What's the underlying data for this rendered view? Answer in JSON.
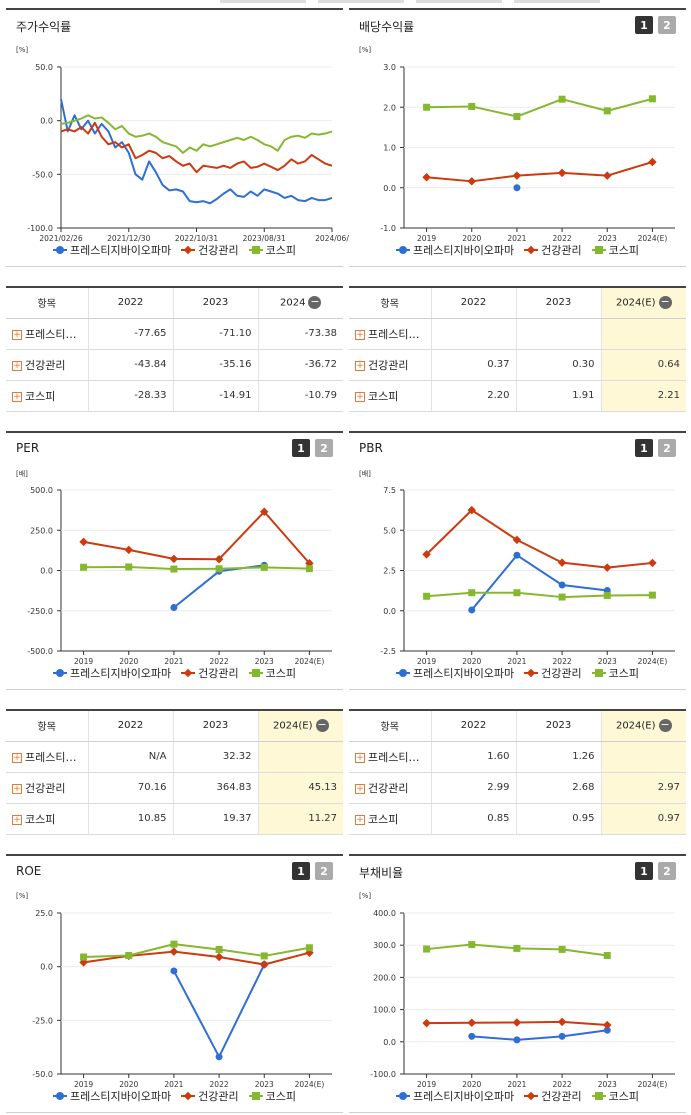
{
  "colors": {
    "company": "#2f6fd4",
    "sector": "#cc3a0e",
    "kospi": "#86b82f"
  },
  "legend": {
    "company": "프레스티지바이오파마",
    "sector": "건강관리",
    "kospi": "코스피"
  },
  "panels": {
    "stock": {
      "title": "주가수익률",
      "unit": "[%]"
    },
    "dividend": {
      "title": "배당수익률",
      "unit": "[%]",
      "btn1": "1",
      "btn2": "2"
    },
    "per": {
      "title": "PER",
      "unit": "[배]",
      "btn1": "1",
      "btn2": "2"
    },
    "pbr": {
      "title": "PBR",
      "unit": "[배]",
      "btn1": "1",
      "btn2": "2"
    },
    "roe": {
      "title": "ROE",
      "unit": "[%]",
      "btn1": "1",
      "btn2": "2"
    },
    "debt": {
      "title": "부채비율",
      "unit": "[%]",
      "btn1": "1",
      "btn2": "2"
    }
  },
  "tables": {
    "stock": {
      "headers": [
        "항목",
        "2022",
        "2023",
        "2024"
      ],
      "rows": [
        [
          "프레스티…",
          "-77.65",
          "-71.10",
          "-73.38"
        ],
        [
          "건강관리",
          "-43.84",
          "-35.16",
          "-36.72"
        ],
        [
          "코스피",
          "-28.33",
          "-14.91",
          "-10.79"
        ]
      ]
    },
    "dividend": {
      "headers": [
        "항목",
        "2022",
        "2023",
        "2024(E)"
      ],
      "rows": [
        [
          "프레스티…",
          "",
          "",
          ""
        ],
        [
          "건강관리",
          "0.37",
          "0.30",
          "0.64"
        ],
        [
          "코스피",
          "2.20",
          "1.91",
          "2.21"
        ]
      ]
    },
    "per": {
      "headers": [
        "항목",
        "2022",
        "2023",
        "2024(E)"
      ],
      "rows": [
        [
          "프레스티…",
          "N/A",
          "32.32",
          ""
        ],
        [
          "건강관리",
          "70.16",
          "364.83",
          "45.13"
        ],
        [
          "코스피",
          "10.85",
          "19.37",
          "11.27"
        ]
      ]
    },
    "pbr": {
      "headers": [
        "항목",
        "2022",
        "2023",
        "2024(E)"
      ],
      "rows": [
        [
          "프레스티…",
          "1.60",
          "1.26",
          ""
        ],
        [
          "건강관리",
          "2.99",
          "2.68",
          "2.97"
        ],
        [
          "코스피",
          "0.85",
          "0.95",
          "0.97"
        ]
      ]
    }
  },
  "chart_data": [
    {
      "id": "stock",
      "type": "line",
      "title": "주가수익률",
      "ylabel": "[%]",
      "ylim": [
        -100,
        50
      ],
      "yticks": [
        50,
        0,
        -50,
        -100
      ],
      "ytick_labels": [
        "50.0",
        "0.0",
        "-50.0",
        "-100.0"
      ],
      "xtick_labels": [
        "2021/02/26",
        "2021/12/30",
        "2022/10/31",
        "2023/08/31",
        "2024/06/"
      ],
      "xlim": [
        0,
        40
      ],
      "xtick_pos": [
        0,
        10,
        20,
        30,
        40
      ],
      "series": [
        {
          "name": "프레스티지바이오파마",
          "key": "company",
          "marker": "none",
          "x": [
            0,
            1,
            2,
            3,
            4,
            5,
            6,
            7,
            8,
            9,
            10,
            11,
            12,
            13,
            14,
            15,
            16,
            17,
            18,
            19,
            20,
            21,
            22,
            23,
            24,
            25,
            26,
            27,
            28,
            29,
            30,
            31,
            32,
            33,
            34,
            35,
            36,
            37,
            38,
            39,
            40
          ],
          "y": [
            20,
            -10,
            5,
            -8,
            0,
            -12,
            -3,
            -10,
            -25,
            -20,
            -30,
            -50,
            -55,
            -38,
            -48,
            -60,
            -65,
            -64,
            -66,
            -75,
            -76,
            -75,
            -77,
            -73,
            -68,
            -64,
            -70,
            -71,
            -66,
            -70,
            -64,
            -66,
            -68,
            -72,
            -70,
            -74,
            -75,
            -72,
            -74,
            -74,
            -72
          ]
        },
        {
          "name": "건강관리",
          "key": "sector",
          "marker": "none",
          "x": [
            0,
            1,
            2,
            3,
            4,
            5,
            6,
            7,
            8,
            9,
            10,
            11,
            12,
            13,
            14,
            15,
            16,
            17,
            18,
            19,
            20,
            21,
            22,
            23,
            24,
            25,
            26,
            27,
            28,
            29,
            30,
            31,
            32,
            33,
            34,
            35,
            36,
            37,
            38,
            39,
            40
          ],
          "y": [
            -10,
            -8,
            -10,
            -6,
            -12,
            -2,
            -15,
            -22,
            -20,
            -25,
            -22,
            -35,
            -32,
            -28,
            -30,
            -35,
            -33,
            -38,
            -42,
            -40,
            -48,
            -42,
            -43,
            -44,
            -42,
            -44,
            -40,
            -38,
            -44,
            -43,
            -40,
            -43,
            -46,
            -42,
            -36,
            -40,
            -38,
            -32,
            -36,
            -40,
            -42
          ]
        },
        {
          "name": "코스피",
          "key": "kospi",
          "marker": "none",
          "x": [
            0,
            1,
            2,
            3,
            4,
            5,
            6,
            7,
            8,
            9,
            10,
            11,
            12,
            13,
            14,
            15,
            16,
            17,
            18,
            19,
            20,
            21,
            22,
            23,
            24,
            25,
            26,
            27,
            28,
            29,
            30,
            31,
            32,
            33,
            34,
            35,
            36,
            37,
            38,
            39,
            40
          ],
          "y": [
            -3,
            -2,
            0,
            2,
            5,
            2,
            3,
            -2,
            -8,
            -5,
            -12,
            -15,
            -14,
            -12,
            -15,
            -20,
            -22,
            -24,
            -30,
            -25,
            -28,
            -22,
            -24,
            -22,
            -20,
            -18,
            -16,
            -18,
            -15,
            -18,
            -22,
            -24,
            -28,
            -18,
            -15,
            -14,
            -16,
            -12,
            -13,
            -12,
            -10
          ]
        }
      ]
    },
    {
      "id": "dividend",
      "type": "line",
      "title": "배당수익률",
      "ylabel": "[%]",
      "ylim": [
        -1,
        3
      ],
      "yticks": [
        3,
        2,
        1,
        0,
        -1
      ],
      "ytick_labels": [
        "3.0",
        "2.0",
        "1.0",
        "0.0",
        "-1.0"
      ],
      "categories": [
        "2019",
        "2020",
        "2021",
        "2022",
        "2023",
        "2024(E)"
      ],
      "series": [
        {
          "name": "프레스티지바이오파마",
          "key": "company",
          "marker": "circle",
          "values": [
            null,
            null,
            0.0,
            null,
            null,
            null
          ]
        },
        {
          "name": "건강관리",
          "key": "sector",
          "marker": "diamond",
          "values": [
            0.26,
            0.16,
            0.3,
            0.37,
            0.3,
            0.64
          ]
        },
        {
          "name": "코스피",
          "key": "kospi",
          "marker": "square",
          "values": [
            2.0,
            2.02,
            1.77,
            2.2,
            1.91,
            2.21
          ]
        }
      ]
    },
    {
      "id": "per",
      "type": "line",
      "title": "PER",
      "ylabel": "[배]",
      "ylim": [
        -500,
        500
      ],
      "yticks": [
        500,
        250,
        0,
        -250,
        -500
      ],
      "ytick_labels": [
        "500.0",
        "250.0",
        "0.0",
        "-250.0",
        "-500.0"
      ],
      "categories": [
        "2019",
        "2020",
        "2021",
        "2022",
        "2023",
        "2024(E)"
      ],
      "series": [
        {
          "name": "프레스티지바이오파마",
          "key": "company",
          "marker": "circle",
          "values": [
            null,
            null,
            -230,
            -5,
            32.32,
            null
          ]
        },
        {
          "name": "건강관리",
          "key": "sector",
          "marker": "diamond",
          "values": [
            178,
            128,
            72,
            70.16,
            364.83,
            45.13
          ]
        },
        {
          "name": "코스피",
          "key": "kospi",
          "marker": "square",
          "values": [
            20,
            22,
            9,
            10.85,
            19.37,
            11.27
          ]
        }
      ]
    },
    {
      "id": "pbr",
      "type": "line",
      "title": "PBR",
      "ylabel": "[배]",
      "ylim": [
        -2.5,
        7.5
      ],
      "yticks": [
        7.5,
        5,
        2.5,
        0,
        -2.5
      ],
      "ytick_labels": [
        "7.5",
        "5.0",
        "2.5",
        "0.0",
        "-2.5"
      ],
      "categories": [
        "2019",
        "2020",
        "2021",
        "2022",
        "2023",
        "2024(E)"
      ],
      "series": [
        {
          "name": "프레스티지바이오파마",
          "key": "company",
          "marker": "circle",
          "values": [
            null,
            0.05,
            3.45,
            1.6,
            1.26,
            null
          ]
        },
        {
          "name": "건강관리",
          "key": "sector",
          "marker": "diamond",
          "values": [
            3.5,
            6.25,
            4.4,
            2.99,
            2.68,
            2.97
          ]
        },
        {
          "name": "코스피",
          "key": "kospi",
          "marker": "square",
          "values": [
            0.9,
            1.12,
            1.12,
            0.85,
            0.95,
            0.97
          ]
        }
      ]
    },
    {
      "id": "roe",
      "type": "line",
      "title": "ROE",
      "ylabel": "[%]",
      "ylim": [
        -50,
        25
      ],
      "yticks": [
        25,
        0,
        -25,
        -50
      ],
      "ytick_labels": [
        "25.0",
        "0.0",
        "-25.0",
        "-50.0"
      ],
      "categories": [
        "2019",
        "2020",
        "2021",
        "2022",
        "2023",
        "2024(E)"
      ],
      "series": [
        {
          "name": "프레스티지바이오파마",
          "key": "company",
          "marker": "circle",
          "values": [
            null,
            null,
            -2,
            -42,
            1,
            null
          ]
        },
        {
          "name": "건강관리",
          "key": "sector",
          "marker": "diamond",
          "values": [
            2,
            5,
            7,
            4.5,
            1,
            6.5
          ]
        },
        {
          "name": "코스피",
          "key": "kospi",
          "marker": "square",
          "values": [
            4.5,
            5.2,
            10.5,
            8,
            5,
            8.8
          ]
        }
      ]
    },
    {
      "id": "debt",
      "type": "line",
      "title": "부채비율",
      "ylabel": "[%]",
      "ylim": [
        -100,
        400
      ],
      "yticks": [
        400,
        300,
        200,
        100,
        0,
        -100
      ],
      "ytick_labels": [
        "400.0",
        "300.0",
        "200.0",
        "100.0",
        "0.0",
        "-100.0"
      ],
      "categories": [
        "2019",
        "2020",
        "2021",
        "2022",
        "2023",
        "2024(E)"
      ],
      "series": [
        {
          "name": "프레스티지바이오파마",
          "key": "company",
          "marker": "circle",
          "values": [
            null,
            17,
            6,
            17,
            36,
            null
          ]
        },
        {
          "name": "건강관리",
          "key": "sector",
          "marker": "diamond",
          "values": [
            58,
            59,
            60,
            62,
            52,
            null
          ]
        },
        {
          "name": "코스피",
          "key": "kospi",
          "marker": "square",
          "values": [
            288,
            302,
            290,
            287,
            268,
            null
          ]
        }
      ]
    }
  ]
}
